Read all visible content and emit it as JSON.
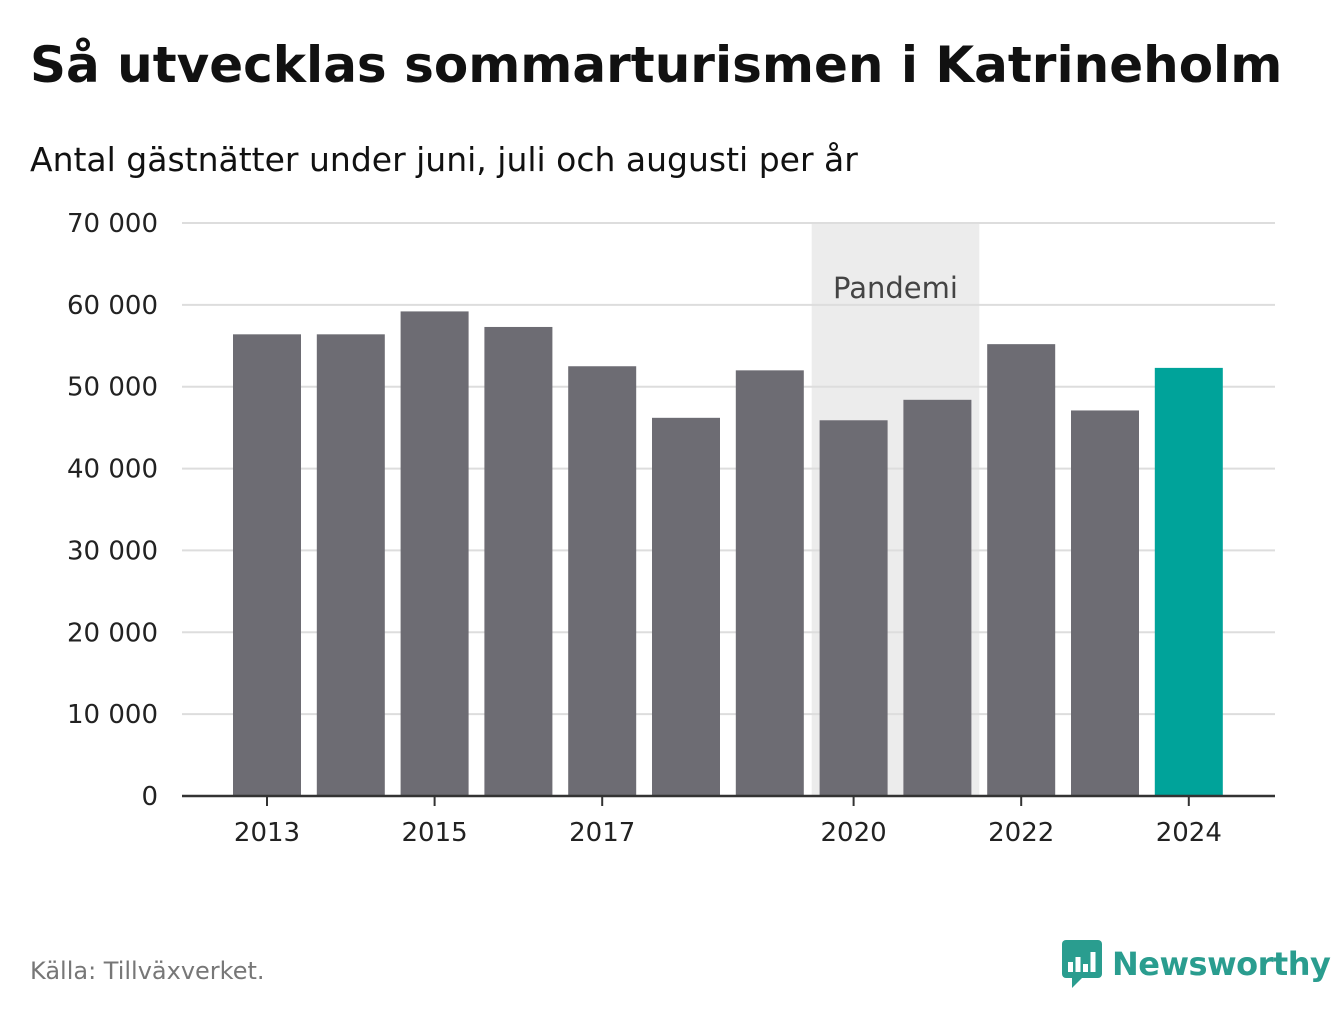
{
  "header": {
    "title": "Så utvecklas sommarturismen i Katrineholm",
    "subtitle": "Antal gästnätter under juni, juli och augusti per år"
  },
  "footer": {
    "source": "Källa: Tillväxverket.",
    "brand": "Newsworthy",
    "brand_icon": "bar-chart-speech-bubble-icon"
  },
  "colors": {
    "bar": "#6d6c73",
    "highlight": "#00a39a",
    "pandemic_band": "#ececec",
    "grid": "#dddddd",
    "axis": "#333333",
    "brand": "#2a9d8f"
  },
  "chart_data": {
    "type": "bar",
    "title": "Så utvecklas sommarturismen i Katrineholm",
    "subtitle": "Antal gästnätter under juni, juli och augusti per år",
    "categories": [
      "2013",
      "2014",
      "2015",
      "2016",
      "2017",
      "2018",
      "2019",
      "2020",
      "2021",
      "2022",
      "2023",
      "2024"
    ],
    "values": [
      56400,
      56400,
      59200,
      57300,
      52500,
      46200,
      52000,
      45900,
      48400,
      55200,
      47100,
      52300
    ],
    "highlight_index": 11,
    "x_tick_labels": [
      "2013",
      "",
      "2015",
      "",
      "2017",
      "",
      "",
      "2020",
      "",
      "2022",
      "",
      "2024"
    ],
    "y_ticks": [
      0,
      10000,
      20000,
      30000,
      40000,
      50000,
      60000,
      70000
    ],
    "y_tick_labels": [
      "0",
      "10 000",
      "20 000",
      "30 000",
      "40 000",
      "50 000",
      "60 000",
      "70 000"
    ],
    "ylim": [
      0,
      70000
    ],
    "grid": true,
    "annotation": {
      "label": "Pandemi",
      "from_category": "2020",
      "to_category": "2021"
    }
  }
}
